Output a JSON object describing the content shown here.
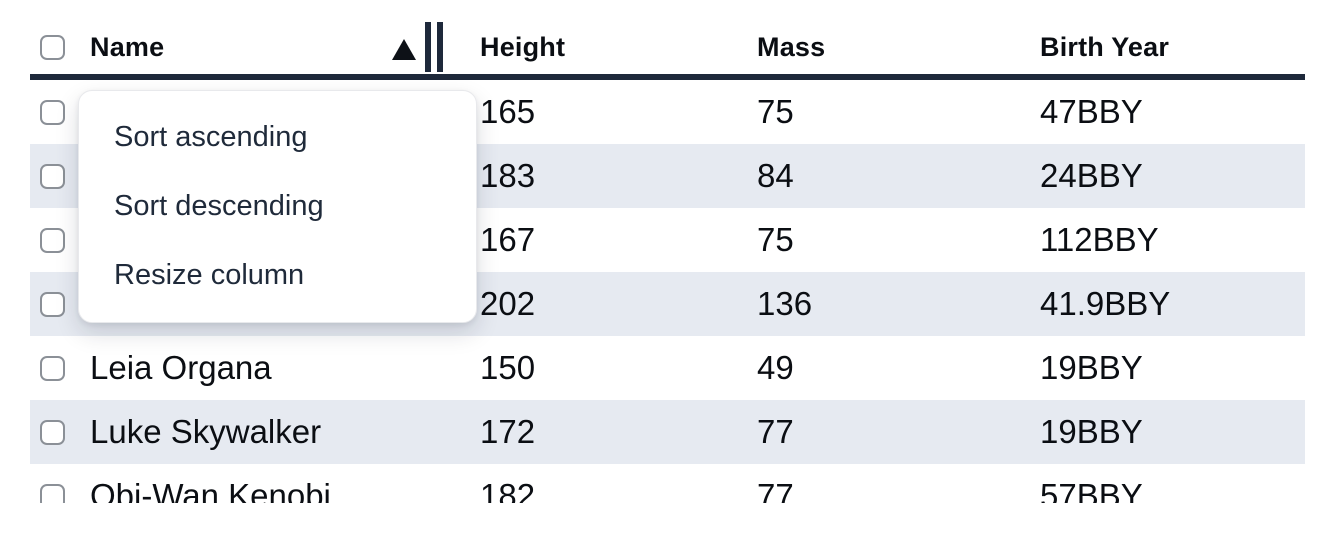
{
  "colors": {
    "stripe": "#e6eaf1",
    "header_border": "#1e293b",
    "text": "#0b0e13",
    "menu_text": "#1f2a3a",
    "checkbox_border": "#8b9097"
  },
  "table": {
    "columns": {
      "name": "Name",
      "height": "Height",
      "mass": "Mass",
      "birth_year": "Birth Year"
    },
    "sort": {
      "column": "Name",
      "direction": "ascending"
    },
    "rows": [
      {
        "name": "",
        "height": "165",
        "mass": "75",
        "birth_year": "47BBY"
      },
      {
        "name": "",
        "height": "183",
        "mass": "84",
        "birth_year": "24BBY"
      },
      {
        "name": "",
        "height": "167",
        "mass": "75",
        "birth_year": "112BBY"
      },
      {
        "name": "",
        "height": "202",
        "mass": "136",
        "birth_year": "41.9BBY"
      },
      {
        "name": "Leia Organa",
        "height": "150",
        "mass": "49",
        "birth_year": "19BBY"
      },
      {
        "name": "Luke Skywalker",
        "height": "172",
        "mass": "77",
        "birth_year": "19BBY"
      },
      {
        "name": "Obi-Wan Kenobi",
        "height": "182",
        "mass": "77",
        "birth_year": "57BBY"
      }
    ]
  },
  "context_menu": {
    "items": [
      {
        "label": "Sort ascending"
      },
      {
        "label": "Sort descending"
      },
      {
        "label": "Resize column"
      }
    ]
  }
}
